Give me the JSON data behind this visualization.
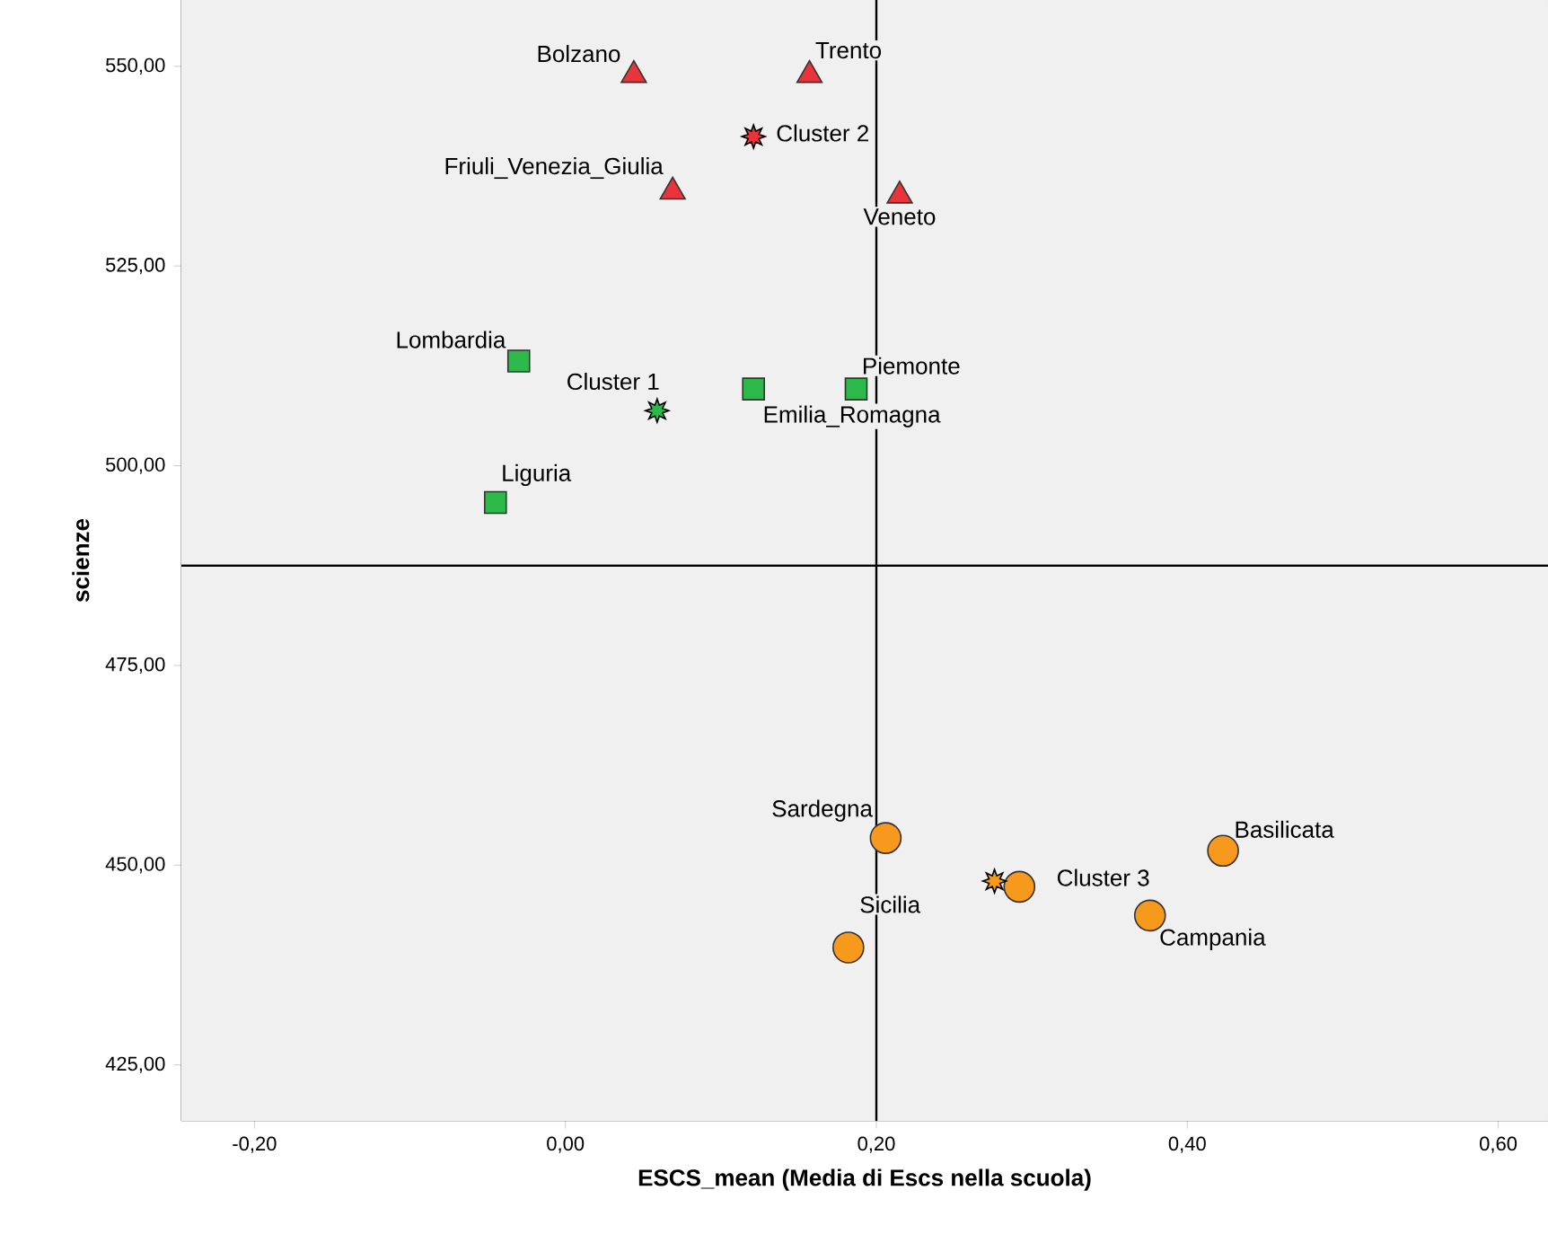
{
  "chart_data": {
    "type": "scatter",
    "xlabel": "ESCS_mean (Media di Escs nella scuola)",
    "ylabel": "scienze",
    "xlim": [
      -0.247,
      0.632
    ],
    "ylim": [
      418,
      558.3
    ],
    "xticks": [
      {
        "value": -0.2,
        "label": "-0,20"
      },
      {
        "value": 0,
        "label": "0,00"
      },
      {
        "value": 0.2,
        "label": "0,20"
      },
      {
        "value": 0.4,
        "label": "0,40"
      },
      {
        "value": 0.6,
        "label": "0,60"
      }
    ],
    "yticks": [
      {
        "value": 425,
        "label": "425,00"
      },
      {
        "value": 450,
        "label": "450,00"
      },
      {
        "value": 475,
        "label": "475,00"
      },
      {
        "value": 500,
        "label": "500,00"
      },
      {
        "value": 525,
        "label": "525,00"
      },
      {
        "value": 550,
        "label": "550,00"
      }
    ],
    "series": [
      {
        "color": "#2db84a",
        "marker": "square",
        "x": [
          -0.03,
          0.121,
          0.187,
          -0.045
        ],
        "values": [
          513.1,
          509.6,
          509.6,
          495.4
        ]
      },
      {
        "color": "#e8343a",
        "marker": "triangle",
        "x": [
          0.044,
          0.157,
          0.069,
          0.215
        ],
        "values": [
          548.9,
          548.9,
          534.3,
          533.8
        ]
      },
      {
        "color": "#f7991c",
        "marker": "circle",
        "x": [
          0.206,
          0.182,
          0.292,
          0.423,
          0.376
        ],
        "values": [
          453.4,
          439.7,
          447.3,
          451.8,
          443.7
        ]
      },
      {
        "name": "Cluster 1",
        "color": "#2db84a",
        "marker": "star",
        "x": [
          0.059
        ],
        "values": [
          506.9
        ]
      },
      {
        "name": "Cluster 2",
        "color": "#e8343a",
        "marker": "star",
        "x": [
          0.121
        ],
        "values": [
          541.2
        ]
      },
      {
        "name": "Cluster 3",
        "color": "#f7991c",
        "marker": "star",
        "x": [
          0.276
        ],
        "values": [
          448.0
        ]
      }
    ],
    "ref_lines": [
      {
        "axis": "x",
        "value": 0.2
      },
      {
        "axis": "y",
        "value": 487.5
      }
    ],
    "annotations": [
      {
        "text": "Bolzano",
        "x": 0.044,
        "y": 548.9
      },
      {
        "text": "Trento",
        "x": 0.157,
        "y": 548.9
      },
      {
        "text": "Friuli_Venezia_Giulia",
        "x": 0.069,
        "y": 534.3
      },
      {
        "text": "Veneto",
        "x": 0.215,
        "y": 533.8
      },
      {
        "text": "Lombardia",
        "x": -0.03,
        "y": 513.1
      },
      {
        "text": "Emilia_Romagna",
        "x": 0.121,
        "y": 509.6
      },
      {
        "text": "Piemonte",
        "x": 0.187,
        "y": 509.6
      },
      {
        "text": "Liguria",
        "x": -0.045,
        "y": 495.4
      },
      {
        "text": "Sardegna",
        "x": 0.206,
        "y": 453.4
      },
      {
        "text": "Sicilia",
        "x": 0.182,
        "y": 439.7
      },
      {
        "text": "Basilicata",
        "x": 0.423,
        "y": 451.8
      },
      {
        "text": "Campania",
        "x": 0.376,
        "y": 443.7
      }
    ]
  }
}
